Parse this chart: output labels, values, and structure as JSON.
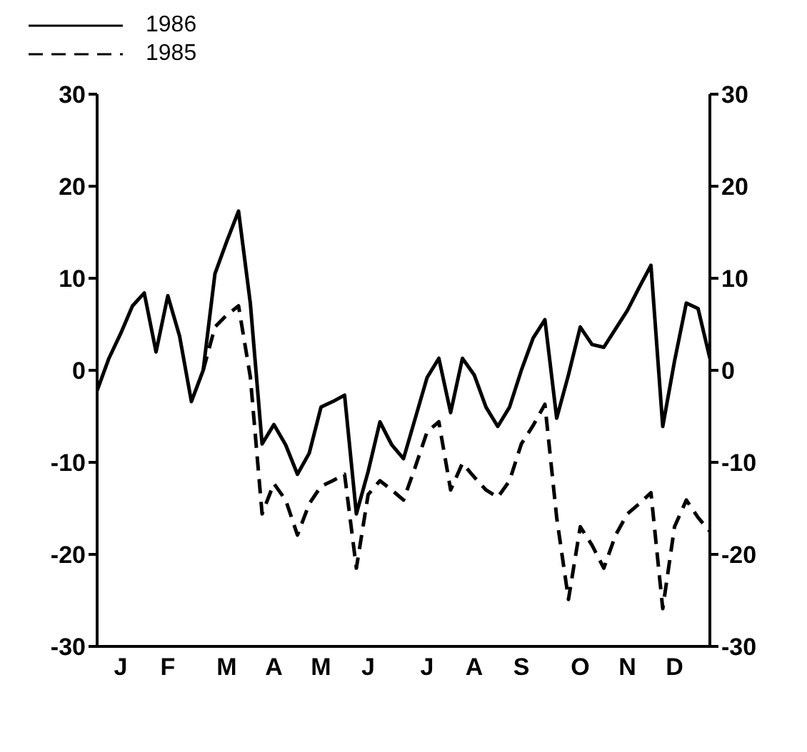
{
  "chart_data": {
    "type": "line",
    "legend": "top left",
    "marker": "none",
    "categories": [
      null,
      null,
      "J",
      null,
      null,
      null,
      "F",
      null,
      null,
      null,
      null,
      "M",
      null,
      null,
      null,
      "A",
      null,
      null,
      null,
      "M",
      null,
      null,
      null,
      "J",
      null,
      null,
      null,
      null,
      "J",
      null,
      null,
      null,
      "A",
      null,
      null,
      null,
      "S",
      null,
      null,
      null,
      null,
      "O",
      null,
      null,
      null,
      "N",
      null,
      null,
      null,
      "D",
      null,
      null,
      null
    ],
    "ylim": [
      -30,
      30
    ],
    "yticks": [
      -30,
      -20,
      -10,
      0,
      10,
      20,
      30
    ],
    "y2lim": [
      -30,
      30
    ],
    "y2ticks": [
      -30,
      -20,
      -10,
      0,
      10,
      20,
      30
    ],
    "series": [
      {
        "name": "1986",
        "color": "#000000",
        "line_style": "solid",
        "values": [
          -2.2,
          1.3,
          4,
          7,
          8.4,
          2,
          8.1,
          3.7,
          -3.4,
          0,
          10.5,
          14,
          17.3,
          7.3,
          -8,
          -5.9,
          -8.1,
          -11.3,
          -9,
          -4,
          -3.4,
          -2.7,
          -15.6,
          -11,
          -5.6,
          -8.1,
          -9.6,
          -5.2,
          -0.8,
          1.3,
          -4.6,
          1.3,
          -0.5,
          -4,
          -6.1,
          -4,
          0,
          3.5,
          5.5,
          -5.2,
          -0.5,
          4.7,
          2.8,
          2.5,
          4.5,
          6.5,
          9,
          11.4,
          -6.1,
          1,
          7.3,
          6.7,
          1.3
        ]
      },
      {
        "name": "1985",
        "color": "#000000",
        "line_style": "dashed",
        "values": [
          null,
          null,
          null,
          null,
          null,
          null,
          null,
          null,
          null,
          0,
          4.7,
          6,
          7,
          -0.7,
          -15.6,
          -12.3,
          -14.1,
          -17.9,
          -14.5,
          -12.6,
          -12,
          -11.3,
          -21.5,
          -13.5,
          -12,
          -13,
          -14.1,
          -10.5,
          -6.7,
          -5.6,
          -13,
          -10.1,
          -11.6,
          -13,
          -13.8,
          -12,
          -8,
          -6,
          -3.7,
          -16,
          -24.9,
          -17,
          -19,
          -21.5,
          -17.9,
          -15.6,
          -14.5,
          -13.3,
          -25.9,
          -17,
          -14.1,
          -16,
          -17.5
        ]
      }
    ]
  }
}
